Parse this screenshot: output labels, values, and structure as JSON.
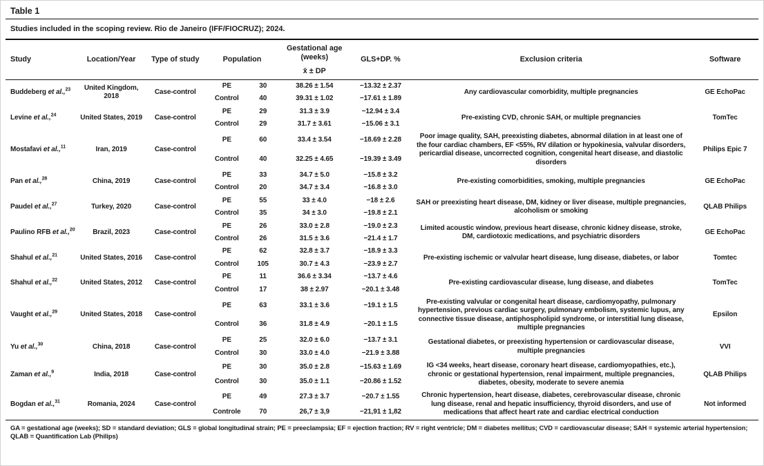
{
  "page": {
    "title": "Table 1",
    "caption": "Studies included in the scoping review. Rio de Janeiro (IFF/FIOCRUZ); 2024."
  },
  "table": {
    "headers": {
      "study": "Study",
      "location": "Location/Year",
      "type": "Type of study",
      "population": "Population",
      "ga_title": "Gestational age (weeks)",
      "ga_sub": "x̄  ± DP",
      "gls": "GLS+DP. %",
      "exclusion": "Exclusion criteria",
      "software": "Software"
    },
    "studies": [
      {
        "name": "Buddeberg",
        "etal": "et al.,",
        "ref": "23",
        "location": "United Kingdom, 2018",
        "type": "Case-control",
        "rows": [
          {
            "group": "PE",
            "n": "30",
            "ga": "38.26 ± 1.54",
            "gls": "−13.32 ± 2.37"
          },
          {
            "group": "Control",
            "n": "40",
            "ga": "39.31 ± 1.02",
            "gls": "−17.61 ± 1.89"
          }
        ],
        "exclusion": "Any cardiovascular comorbidity, multiple pregnancies",
        "software": "GE EchoPac"
      },
      {
        "name": "Levine",
        "etal": "et al.,",
        "ref": "24",
        "location": "United States, 2019",
        "type": "Case-control",
        "rows": [
          {
            "group": "PE",
            "n": "29",
            "ga": "31.3 ± 3.9",
            "gls": "−12.94 ± 3.4"
          },
          {
            "group": "Control",
            "n": "29",
            "ga": "31.7 ± 3.61",
            "gls": "−15.06 ± 3.1"
          }
        ],
        "exclusion": "Pre-existing CVD, chronic SAH, or multiple pregnancies",
        "software": "TomTec"
      },
      {
        "name": "Mostafavi",
        "etal": "et al.,",
        "ref": "11",
        "location": "Iran, 2019",
        "type": "Case-control",
        "rows": [
          {
            "group": "PE",
            "n": "60",
            "ga": "33.4 ± 3.54",
            "gls": "−18.69 ± 2.28"
          },
          {
            "group": "Control",
            "n": "40",
            "ga": "32.25 ± 4.65",
            "gls": "−19.39 ± 3.49"
          }
        ],
        "exclusion": "Poor image quality, SAH, preexisting diabetes, abnormal dilation in at least one of the four cardiac chambers, EF <55%, RV dilation or hypokinesia, valvular disorders, pericardial disease, uncorrected cognition, congenital heart disease, and diastolic disorders",
        "software": "Philips Epic 7"
      },
      {
        "name": "Pan",
        "etal": "et al.,",
        "ref": "28",
        "location": "China, 2019",
        "type": "Case-control",
        "rows": [
          {
            "group": "PE",
            "n": "33",
            "ga": "34.7 ± 5.0",
            "gls": "−15.8 ± 3.2"
          },
          {
            "group": "Control",
            "n": "20",
            "ga": "34.7 ± 3.4",
            "gls": "−16.8 ± 3.0"
          }
        ],
        "exclusion": "Pre-existing comorbidities, smoking, multiple pregnancies",
        "software": "GE EchoPac"
      },
      {
        "name": "Paudel",
        "etal": "et al.,",
        "ref": "27",
        "location": "Turkey, 2020",
        "type": "Case-control",
        "rows": [
          {
            "group": "PE",
            "n": "55",
            "ga": "33 ± 4.0",
            "gls": "−18 ± 2.6"
          },
          {
            "group": "Control",
            "n": "35",
            "ga": "34 ± 3.0",
            "gls": "−19.8 ± 2.1"
          }
        ],
        "exclusion": "SAH or preexisting heart disease, DM, kidney or liver disease, multiple pregnancies, alcoholism or smoking",
        "software": "QLAB Philips"
      },
      {
        "name": "Paulino RFB",
        "etal": "et al.,",
        "ref": "20",
        "location": "Brazil, 2023",
        "type": "Case-control",
        "rows": [
          {
            "group": "PE",
            "n": "26",
            "ga": "33.0 ± 2.8",
            "gls": "−19.0 ± 2.3"
          },
          {
            "group": "Control",
            "n": "26",
            "ga": "31.5 ± 3.6",
            "gls": "−21.4 ± 1.7"
          }
        ],
        "exclusion": "Limited acoustic window, previous heart disease, chronic kidney disease, stroke, DM, cardiotoxic medications, and psychiatric disorders",
        "software": "GE EchoPac"
      },
      {
        "name": "Shahul",
        "etal": "et al.,",
        "ref": "21",
        "location": "United States, 2016",
        "type": "Case-control",
        "rows": [
          {
            "group": "PE",
            "n": "62",
            "ga": "32.8 ± 3.7",
            "gls": "−18.9 ± 3.3"
          },
          {
            "group": "Control",
            "n": "105",
            "ga": "30.7 ± 4.3",
            "gls": "−23.9 ± 2.7"
          }
        ],
        "exclusion": "Pre-existing ischemic or valvular heart disease, lung disease, diabetes, or labor",
        "software": "Tomtec"
      },
      {
        "name": "Shahul",
        "etal": "et al.,",
        "ref": "22",
        "location": "United States, 2012",
        "type": "Case-control",
        "rows": [
          {
            "group": "PE",
            "n": "11",
            "ga": "36.6 ± 3.34",
            "gls": "−13.7 ± 4.6"
          },
          {
            "group": "Control",
            "n": "17",
            "ga": "38 ± 2.97",
            "gls": "−20.1 ± 3.48"
          }
        ],
        "exclusion": "Pre-existing cardiovascular disease, lung disease, and diabetes",
        "software": "TomTec"
      },
      {
        "name": "Vaught",
        "etal": "et al.,",
        "ref": "29",
        "location": "United States, 2018",
        "type": "Case-control",
        "rows": [
          {
            "group": "PE",
            "n": "63",
            "ga": "33.1 ± 3.6",
            "gls": "−19.1 ± 1.5"
          },
          {
            "group": "Control",
            "n": "36",
            "ga": "31.8 ± 4.9",
            "gls": "−20.1 ± 1.5"
          }
        ],
        "exclusion": "Pre-existing valvular or congenital heart disease, cardiomyopathy, pulmonary hypertension, previous cardiac surgery, pulmonary embolism, systemic lupus, any connective tissue disease, antiphospholipid syndrome, or interstitial lung disease, multiple pregnancies",
        "software": "Epsilon"
      },
      {
        "name": "Yu",
        "etal": "et al.,",
        "ref": "30",
        "location": "China, 2018",
        "type": "Case-control",
        "rows": [
          {
            "group": "PE",
            "n": "25",
            "ga": "32.0 ± 6.0",
            "gls": "−13.7 ± 3.1"
          },
          {
            "group": "Control",
            "n": "30",
            "ga": "33.0 ± 4.0",
            "gls": "−21.9 ± 3.88"
          }
        ],
        "exclusion": "Gestational diabetes, or preexisting hypertension or cardiovascular disease, multiple pregnancies",
        "software": "VVI"
      },
      {
        "name": "Zaman",
        "etal": "et al.,",
        "ref": "9",
        "location": "India, 2018",
        "type": "Case-control",
        "rows": [
          {
            "group": "PE",
            "n": "30",
            "ga": "35.0 ± 2.8",
            "gls": "−15.63 ± 1.69"
          },
          {
            "group": "Control",
            "n": "30",
            "ga": "35.0 ± 1.1",
            "gls": "−20.86 ± 1.52"
          }
        ],
        "exclusion": "IG <34 weeks, heart disease, coronary heart disease, cardiomyopathies, etc.), chronic or gestational hypertension, renal impairment, multiple pregnancies, diabetes, obesity, moderate to severe anemia",
        "software": "QLAB Philips"
      },
      {
        "name": "Bogdan",
        "etal": "et al.,",
        "ref": "31",
        "location": "Romania, 2024",
        "type": "Case-control",
        "rows": [
          {
            "group": "PE",
            "n": "49",
            "ga": "27.3 ± 3.7",
            "gls": "−20.7 ± 1.55"
          },
          {
            "group": "Controle",
            "n": "70",
            "ga": "26,7 ± 3,9",
            "gls": "−21,91 ± 1,82"
          }
        ],
        "exclusion": "Chronic hypertension, heart disease, diabetes, cerebrovascular disease, chronic lung disease, renal and hepatic insufficiency, thyroid disorders, and use of medications that affect heart rate and cardiac electrical conduction",
        "software": "Not informed"
      }
    ]
  },
  "footnote": "GA = gestational age (weeks); SD = standard deviation; GLS = global longitudinal strain; PE = preeclampsia; EF = ejection fraction; RV = right ventricle; DM = diabetes mellitus; CVD = cardiovascular disease; SAH = systemic arterial hypertension; QLAB = Quantification Lab (Philips)"
}
